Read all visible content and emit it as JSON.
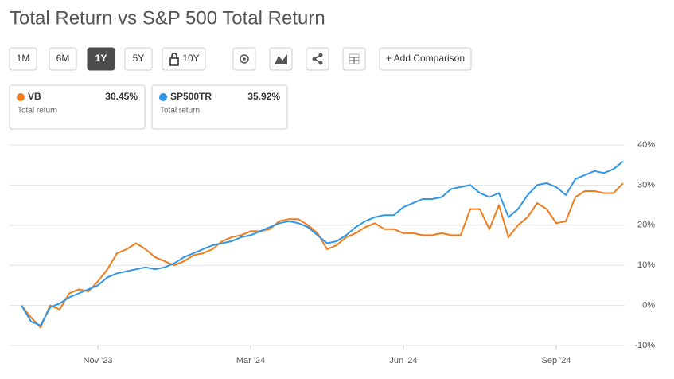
{
  "chart_data": {
    "type": "line",
    "title": "Total Return vs S&P 500 Total Return",
    "buttons": [
      "1M",
      "6M",
      "1Y",
      "5Y",
      "10Y"
    ],
    "active_button": "1Y",
    "add_comparison": "+ Add Comparison",
    "card_caption": "Total return",
    "categories": [
      null,
      null,
      null,
      null,
      null,
      null,
      null,
      null,
      "Nov '23",
      null,
      null,
      null,
      null,
      null,
      null,
      null,
      null,
      null,
      null,
      null,
      null,
      null,
      null,
      null,
      "Mar '24",
      null,
      null,
      null,
      null,
      null,
      null,
      null,
      null,
      null,
      null,
      null,
      null,
      null,
      null,
      null,
      "Jun '24",
      null,
      null,
      null,
      null,
      null,
      null,
      null,
      null,
      null,
      null,
      null,
      null,
      null,
      null,
      null,
      "Sep '24",
      null,
      null,
      null,
      null,
      null,
      null,
      null
    ],
    "series": [
      {
        "name": "VB",
        "color": "#f07c1b",
        "summary_label": "30.45%",
        "values": [
          0,
          -3,
          -5.5,
          0,
          -1,
          3,
          4,
          3.5,
          6,
          9,
          13,
          14,
          15.5,
          14,
          12,
          11,
          10,
          11,
          12.5,
          13,
          14,
          16,
          17,
          17.5,
          18.5,
          18.5,
          19,
          21,
          21.5,
          21.5,
          20,
          18,
          14,
          15,
          17,
          18,
          19.5,
          20.5,
          19,
          19,
          18,
          18,
          17.5,
          17.5,
          18,
          17.5,
          17.5,
          24,
          24,
          19,
          25,
          17,
          20,
          22,
          25.5,
          24,
          20.5,
          21,
          27,
          28.5,
          28.5,
          28,
          28,
          30.45
        ]
      },
      {
        "name": "SP500TR",
        "color": "#2f96e8",
        "summary_label": "35.92%",
        "values": [
          0,
          -4,
          -5,
          -0.5,
          0.5,
          2,
          3,
          4,
          5,
          7,
          8,
          8.5,
          9,
          9.5,
          9,
          9.5,
          10.5,
          12,
          13,
          14,
          15,
          15.5,
          16,
          17,
          17.5,
          18.5,
          19.5,
          20.5,
          21,
          20.5,
          19.5,
          17.5,
          15.5,
          16,
          17.5,
          19.5,
          21,
          22,
          22.5,
          22.5,
          24.5,
          25.5,
          26.5,
          26.5,
          27,
          29,
          29.5,
          30,
          28,
          27,
          28,
          22,
          24,
          27.5,
          30,
          30.5,
          29.5,
          27.5,
          31.5,
          32.5,
          33.5,
          33,
          34,
          35.92
        ]
      }
    ],
    "ylim": [
      -10,
      40
    ],
    "yticks": [
      {
        "value": -10,
        "label": "-10%"
      },
      {
        "value": 0,
        "label": "0%"
      },
      {
        "value": 10,
        "label": "10%"
      },
      {
        "value": 20,
        "label": "20%"
      },
      {
        "value": 30,
        "label": "30%"
      },
      {
        "value": 40,
        "label": "40%"
      }
    ],
    "grid": true
  }
}
